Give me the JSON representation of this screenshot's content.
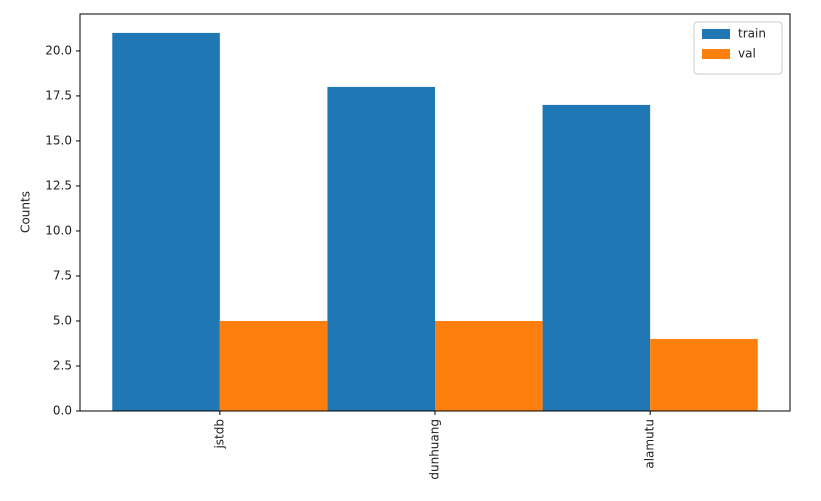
{
  "chart_data": {
    "type": "bar",
    "y_label": "Counts",
    "categories": [
      "jstdb",
      "dunhuang",
      "alamutu"
    ],
    "series": [
      {
        "name": "train",
        "color": "#1f77b4",
        "values": [
          21,
          18,
          17
        ]
      },
      {
        "name": "val",
        "color": "#ff7f0e",
        "values": [
          5,
          5,
          4
        ]
      }
    ],
    "ylim": [
      0,
      22.05
    ],
    "yticks": [
      {
        "value": 0,
        "label": "0.0"
      },
      {
        "value": 2.5,
        "label": "2.5"
      },
      {
        "value": 5,
        "label": "5.0"
      },
      {
        "value": 7.5,
        "label": "7.5"
      },
      {
        "value": 10,
        "label": "10.0"
      },
      {
        "value": 12.5,
        "label": "12.5"
      },
      {
        "value": 15,
        "label": "15.0"
      },
      {
        "value": 17.5,
        "label": "17.5"
      },
      {
        "value": 20,
        "label": "20.0"
      }
    ],
    "legend": "upper right",
    "grid": false
  }
}
